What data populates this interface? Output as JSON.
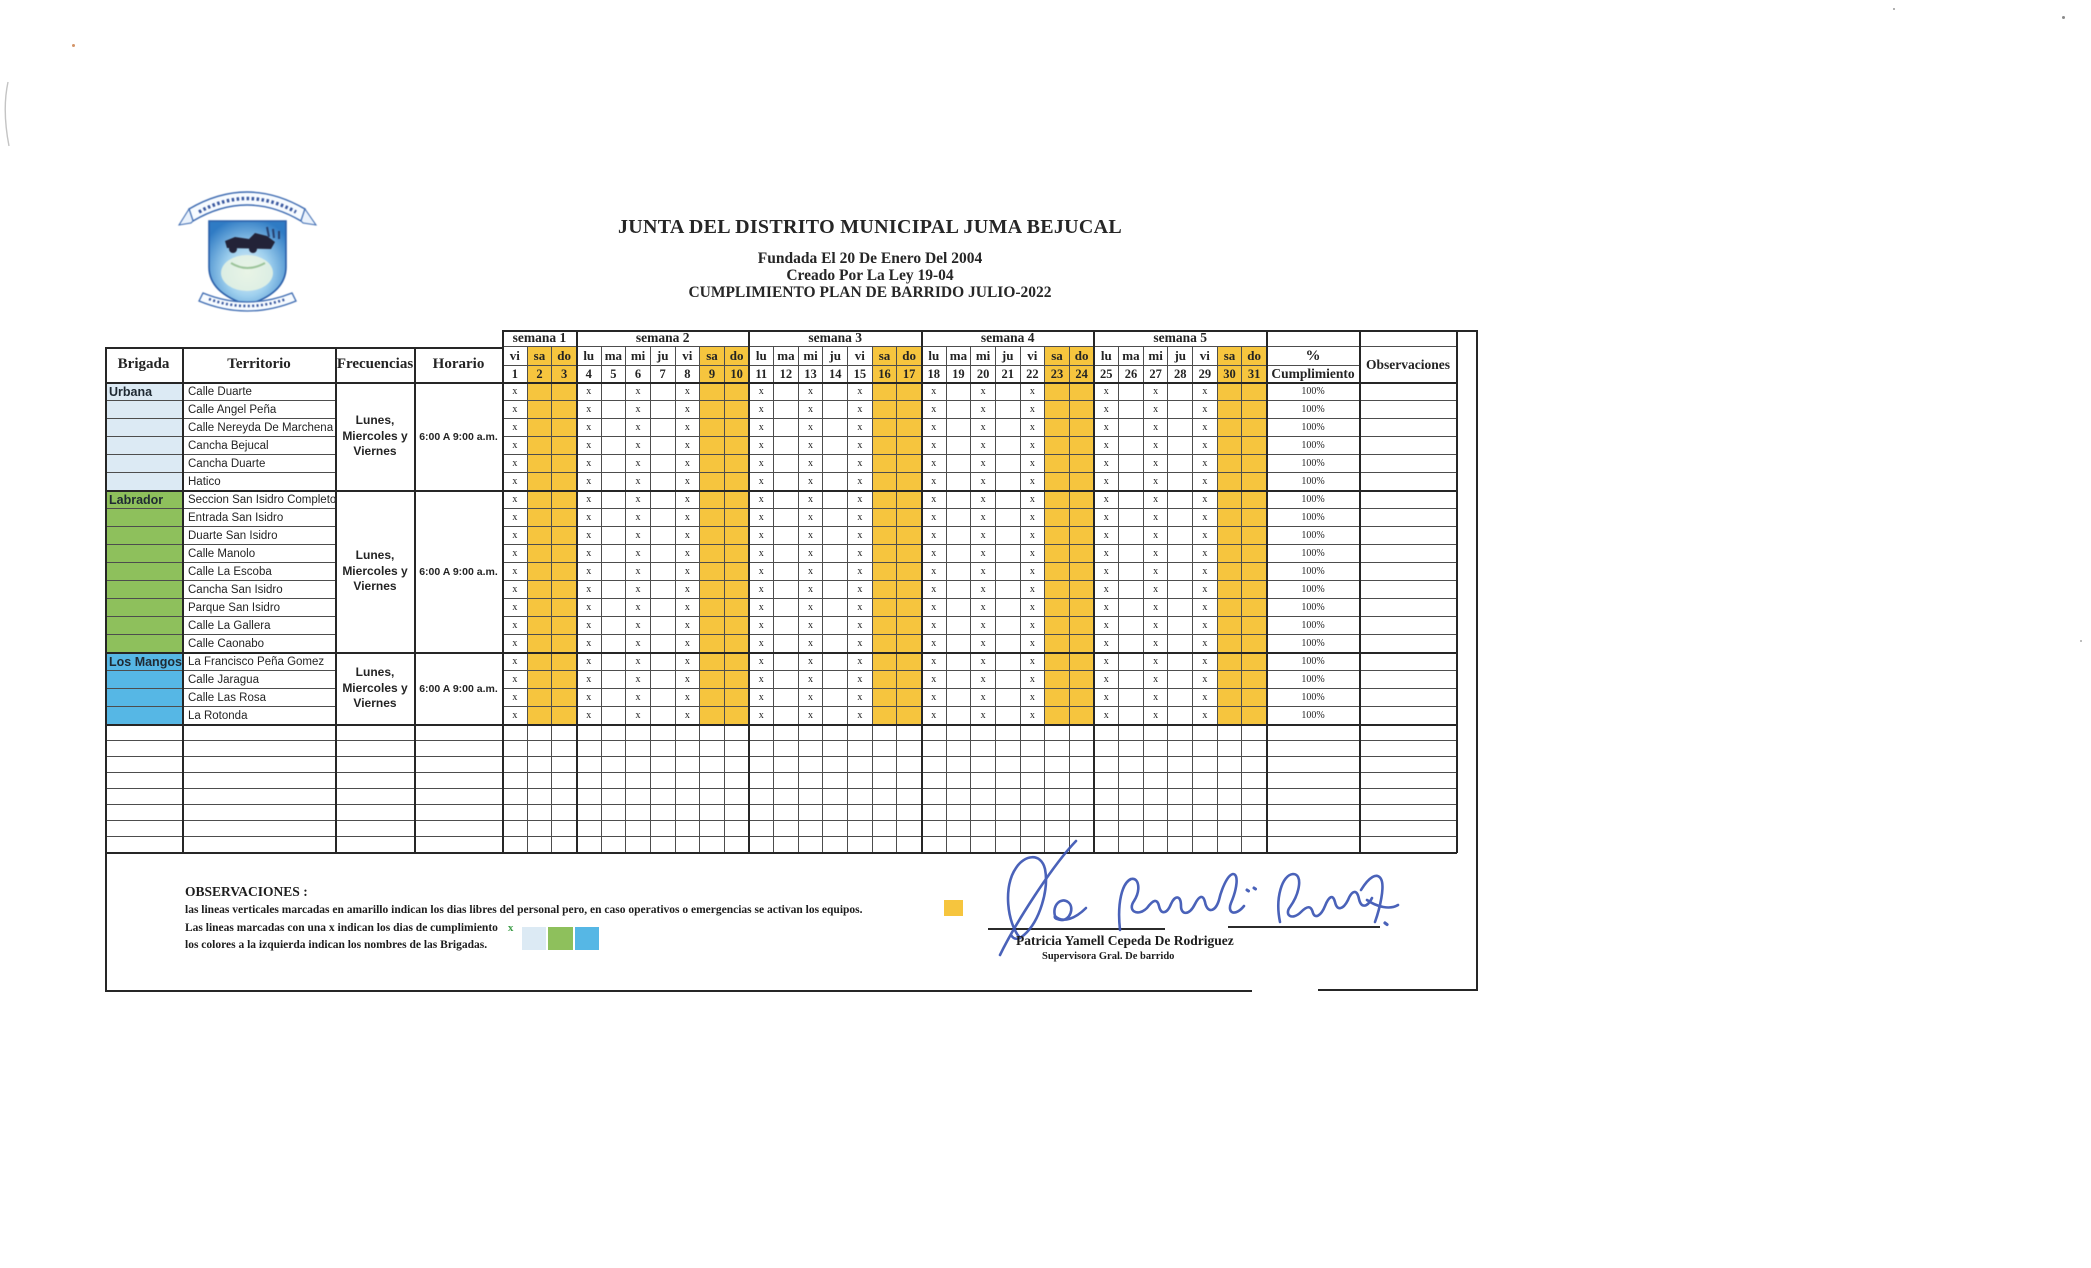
{
  "header": {
    "org_title": "JUNTA DEL DISTRITO MUNICIPAL JUMA BEJUCAL",
    "line1": "Fundada El 20 De Enero Del 2004",
    "line2": "Creado Por La Ley 19-04",
    "line3": "CUMPLIMIENTO PLAN DE BARRIDO JULIO-2022"
  },
  "table": {
    "column_headers": {
      "brigada": "Brigada",
      "territorio": "Territorio",
      "frecuencias": "Frecuencias",
      "horario": "Horario",
      "pct": "%",
      "cumplimiento": "Cumplimiento",
      "observaciones": "Observaciones"
    },
    "weeks": [
      {
        "label": "semana 1",
        "span": 3
      },
      {
        "label": "semana 2",
        "span": 7
      },
      {
        "label": "semana 3",
        "span": 7
      },
      {
        "label": "semana 4",
        "span": 7
      },
      {
        "label": "semana 5",
        "span": 7
      }
    ],
    "day_names": [
      "vi",
      "sa",
      "do",
      "lu",
      "ma",
      "mi",
      "ju",
      "vi",
      "sa",
      "do",
      "lu",
      "ma",
      "mi",
      "ju",
      "vi",
      "sa",
      "do",
      "lu",
      "ma",
      "mi",
      "ju",
      "vi",
      "sa",
      "do",
      "lu",
      "ma",
      "mi",
      "ju",
      "vi",
      "sa",
      "do"
    ],
    "day_numbers": [
      1,
      2,
      3,
      4,
      5,
      6,
      7,
      8,
      9,
      10,
      11,
      12,
      13,
      14,
      15,
      16,
      17,
      18,
      19,
      20,
      21,
      22,
      23,
      24,
      25,
      26,
      27,
      28,
      29,
      30,
      31
    ],
    "weekend_days": [
      2,
      3,
      9,
      10,
      16,
      17,
      23,
      24,
      30,
      31
    ],
    "marked_days": [
      1,
      4,
      6,
      8,
      11,
      13,
      15,
      18,
      20,
      22,
      25,
      27,
      29
    ],
    "mark": "x",
    "cumplimiento_value": "100%",
    "empty_rows": 8,
    "groups": [
      {
        "name": "Urbana",
        "color": "#DCEAF4",
        "frecuencias": "Lunes, Miercoles y Viernes",
        "horario": "6:00 A 9:00 a.m.",
        "territorios": [
          "Calle Duarte",
          "Calle Angel Peña",
          "Calle Nereyda De Marchena",
          "Cancha Bejucal",
          "Cancha Duarte",
          "Hatico"
        ]
      },
      {
        "name": "Labrador",
        "color": "#8EC05C",
        "frecuencias": "Lunes, Miercoles y Viernes",
        "horario": "6:00 A 9:00 a.m.",
        "territorios": [
          "Seccion San Isidro Completo",
          "Entrada San Isidro",
          "Duarte San Isidro",
          "Calle Manolo",
          "Calle La Escoba",
          "Cancha San Isidro",
          "Parque San Isidro",
          "Calle La Gallera",
          "Calle Caonabo"
        ]
      },
      {
        "name": "Los Mangos",
        "color": "#56B7E5",
        "frecuencias": "Lunes, Miercoles y Viernes",
        "horario": "6:00 A 9:00 a.m.",
        "territorios": [
          "La Francisco Peña Gomez",
          "Calle Jaragua",
          "Calle Las Rosa",
          "La Rotonda"
        ]
      }
    ]
  },
  "observaciones": {
    "title": "OBSERVACIONES :",
    "line1": "las lineas verticales marcadas en amarillo indican los dias  libres del personal pero, en caso operativos o emergencias se activan los equipos.",
    "line2": "Las lineas marcadas con una x indican los dias de cumplimiento",
    "line2_mark": "x",
    "line3": "los colores a la izquierda indican los nombres de las Brigadas.",
    "libre_color": "#F6C53E",
    "brigada_colors": [
      "#DCEAF4",
      "#8EC05C",
      "#56B7E5"
    ]
  },
  "signature": {
    "name": "Patricia Yamell Cepeda De Rodriguez",
    "role": "Supervisora Gral. De barrido"
  },
  "colors": {
    "weekend": "#F6C53E",
    "grid_line": "#4d4d4d",
    "heavy_line": "#262626",
    "signature_ink": "#3b55b4"
  }
}
